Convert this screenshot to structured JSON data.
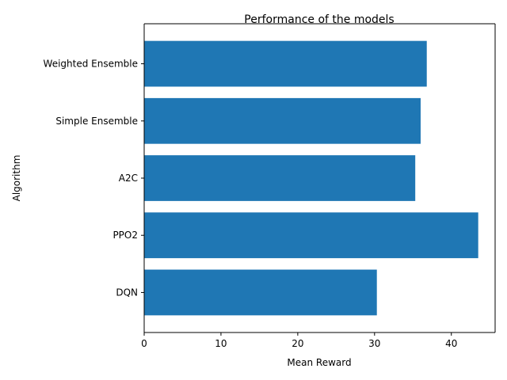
{
  "chart_data": {
    "type": "bar",
    "orientation": "horizontal",
    "title": "Performance of the models",
    "xlabel": "Mean Reward",
    "ylabel": "Algorithm",
    "categories": [
      "DQN",
      "PPO2",
      "A2C",
      "Simple Ensemble",
      "Weighted Ensemble"
    ],
    "values": [
      30.3,
      43.5,
      35.3,
      36.0,
      36.8
    ],
    "xlim": [
      0,
      45.7
    ],
    "xticks": [
      0,
      10,
      20,
      30,
      40
    ],
    "grid": false,
    "legend": "none",
    "bar_color": "#1f77b4"
  }
}
